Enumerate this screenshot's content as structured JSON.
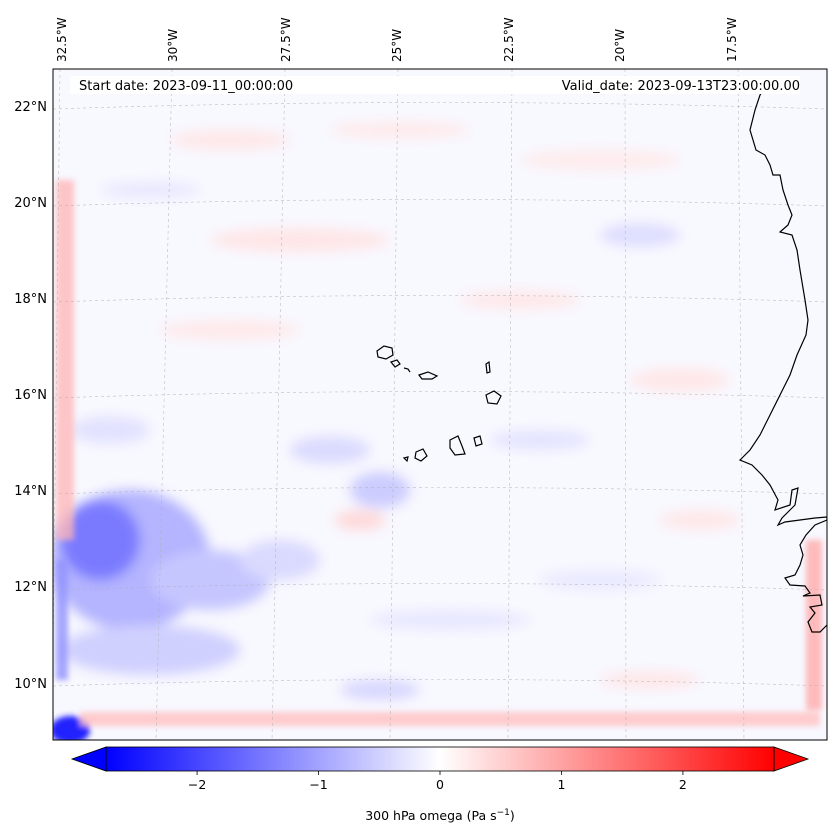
{
  "map": {
    "start_label": "Start date: 2023-09-11_00:00:00",
    "valid_label": "Valid_date: 2023-09-13T23:00:00.00",
    "lon_labels": [
      "32.5°W",
      "30°W",
      "27.5°W",
      "25°W",
      "22.5°W",
      "20°W",
      "17.5°W"
    ],
    "lat_labels": [
      "22°N",
      "20°N",
      "18°N",
      "16°N",
      "14°N",
      "12°N",
      "10°N"
    ],
    "colormap": "bwr",
    "colors": {
      "negative": "#0000ff",
      "zero": "#ffffff",
      "positive": "#ff0000",
      "coastline": "#000000",
      "gridline": "#b0b0b0"
    }
  },
  "colorbar": {
    "label_main": "300 hPa omega (Pa s",
    "label_exp": "−1",
    "label_end": ")",
    "ticks": [
      "−2",
      "−1",
      "0",
      "1",
      "2"
    ],
    "tick_values": [
      -2,
      -1,
      0,
      1,
      2
    ],
    "range": [
      -2.75,
      2.75
    ],
    "extend": "both"
  }
}
